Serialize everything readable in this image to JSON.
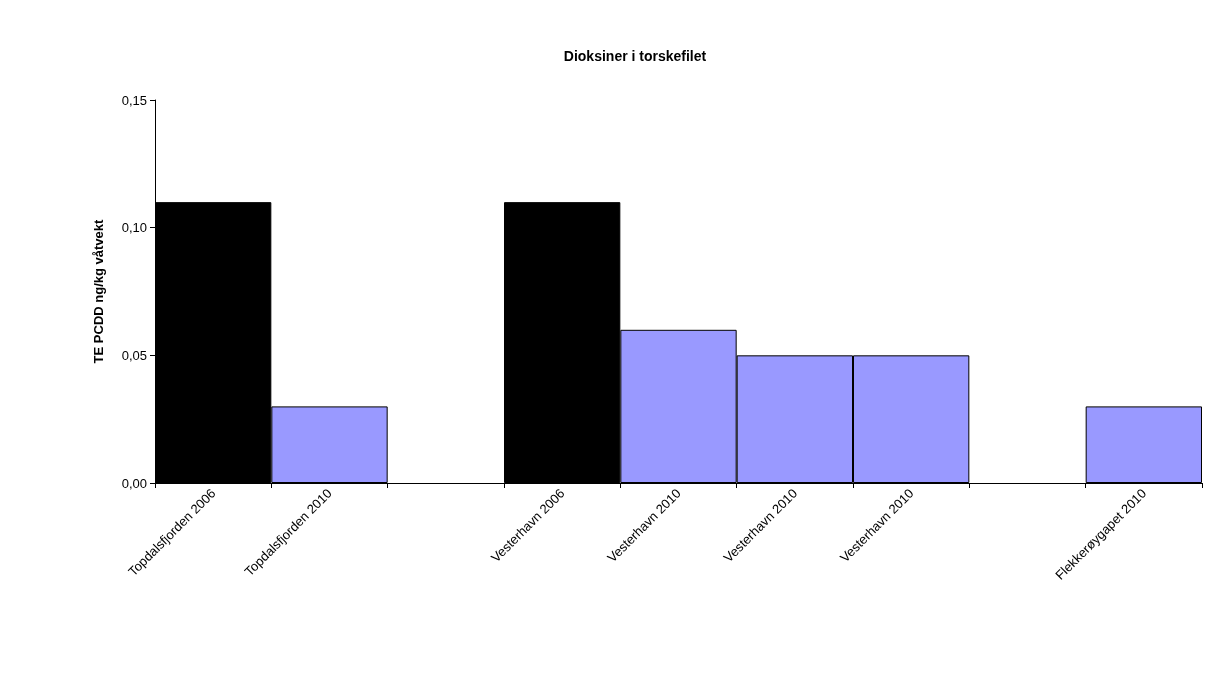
{
  "chart_data": {
    "type": "bar",
    "title": "Dioksiner i torskefilet",
    "ylabel": "TE PCDD ng/kg våtvekt",
    "categories": [
      "Topdalsfjorden 2006",
      "Topdalsfjorden 2010",
      null,
      "Vesterhavn 2006",
      "Vesterhavn 2010",
      "Vesterhavn 2010",
      "Vesterhavn 2010",
      null,
      "Flekkerøygapet 2010"
    ],
    "values": [
      0.11,
      0.03,
      null,
      0.11,
      0.06,
      0.05,
      0.05,
      null,
      0.03
    ],
    "colors": [
      "#000000",
      "#9999ff",
      "#9999ff",
      "#000000",
      "#9999ff",
      "#9999ff",
      "#9999ff",
      "#9999ff",
      "#9999ff"
    ],
    "ylim": [
      0,
      0.15
    ],
    "yticks": [
      {
        "value": 0,
        "label": "0,00"
      },
      {
        "value": 0.05,
        "label": "0,05"
      },
      {
        "value": 0.1,
        "label": "0,10"
      },
      {
        "value": 0.15,
        "label": "0,15"
      }
    ],
    "grid": false
  }
}
